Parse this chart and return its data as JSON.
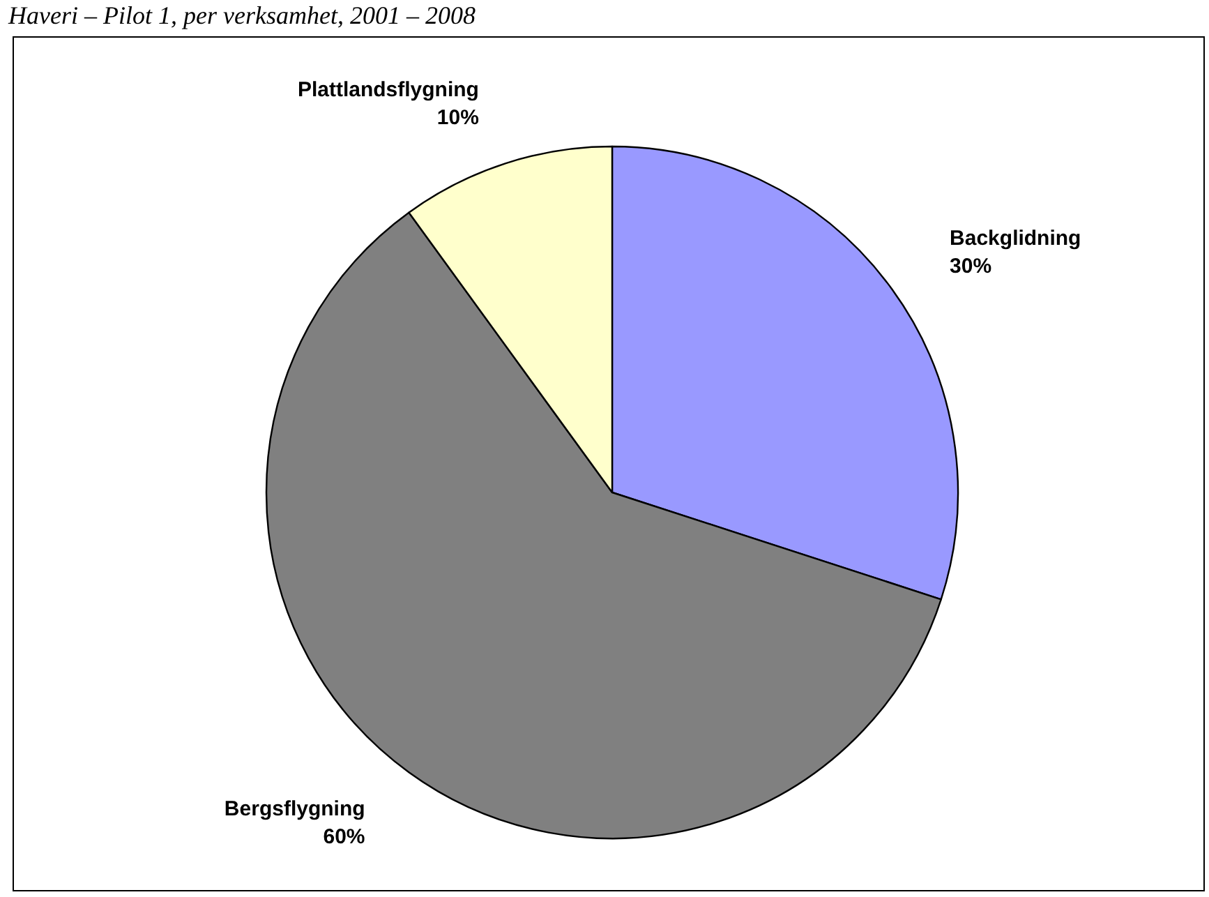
{
  "chart_data": {
    "type": "pie",
    "title": "Haveri – Pilot 1, per verksamhet, 2001 – 2008",
    "categories": [
      "Backglidning",
      "Bergsflygning",
      "Plattlandsflygning"
    ],
    "values": [
      30,
      60,
      10
    ],
    "colors": [
      "#9999ff",
      "#808080",
      "#ffffcc"
    ],
    "value_labels": [
      "30%",
      "60%",
      "10%"
    ],
    "legend": false
  }
}
